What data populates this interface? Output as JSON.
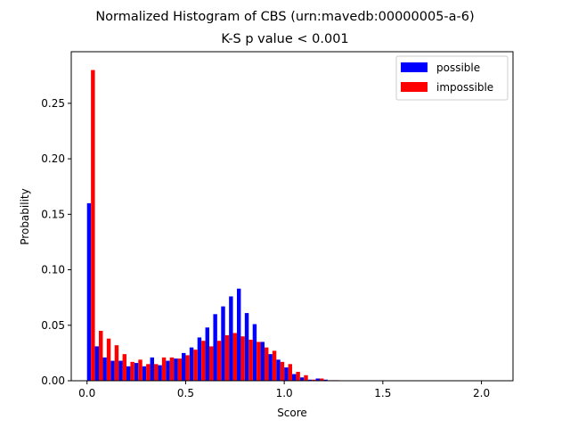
{
  "chart_data": {
    "type": "bar",
    "title": "Normalized Histogram of CBS (urn:mavedb:00000005-a-6)",
    "subtitle": "K-S p value < 0.001",
    "xlabel": "Score",
    "ylabel": "Probability",
    "xlim": [
      -0.08,
      2.16
    ],
    "ylim": [
      0,
      0.2965
    ],
    "xticks": [
      0.0,
      0.5,
      1.0,
      1.5,
      2.0
    ],
    "xtick_labels": [
      "0.0",
      "0.5",
      "1.0",
      "1.5",
      "2.0"
    ],
    "yticks": [
      0.0,
      0.05,
      0.1,
      0.15,
      0.2,
      0.25
    ],
    "ytick_labels": [
      "0.00",
      "0.05",
      "0.10",
      "0.15",
      "0.20",
      "0.25"
    ],
    "grid": false,
    "legend_position": "top-right",
    "bin_start": 0.0,
    "bin_width": 0.04,
    "series": [
      {
        "name": "possible",
        "color": "#0000ff",
        "values": [
          0.16,
          0.031,
          0.021,
          0.018,
          0.018,
          0.013,
          0.016,
          0.013,
          0.021,
          0.014,
          0.018,
          0.02,
          0.025,
          0.03,
          0.039,
          0.048,
          0.06,
          0.067,
          0.076,
          0.083,
          0.061,
          0.051,
          0.035,
          0.024,
          0.019,
          0.012,
          0.006,
          0.003,
          0.001,
          0.002,
          0.001,
          0.0005,
          0,
          0,
          0,
          0,
          0,
          0,
          0,
          0,
          0,
          0,
          0,
          0,
          0,
          0,
          0,
          0,
          0,
          0,
          0,
          0
        ]
      },
      {
        "name": "impossible",
        "color": "#ff0000",
        "values": [
          0.28,
          0.045,
          0.038,
          0.032,
          0.024,
          0.017,
          0.019,
          0.015,
          0.015,
          0.021,
          0.021,
          0.02,
          0.023,
          0.028,
          0.036,
          0.031,
          0.036,
          0.041,
          0.043,
          0.04,
          0.037,
          0.035,
          0.03,
          0.027,
          0.017,
          0.015,
          0.008,
          0.005,
          0.001,
          0.002,
          0.0005,
          0.0005,
          0,
          0,
          0,
          0,
          0,
          0,
          0,
          0,
          0,
          0,
          0,
          0,
          0,
          0,
          0,
          0,
          0,
          0,
          0,
          0
        ]
      }
    ]
  }
}
